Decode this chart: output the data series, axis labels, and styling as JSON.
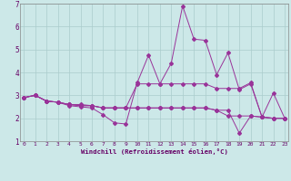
{
  "xlabel": "Windchill (Refroidissement éolien,°C)",
  "line_color": "#993399",
  "bg_color": "#cce8e8",
  "grid_color": "#aacccc",
  "x_min": 0,
  "x_max": 23,
  "y_min": 1,
  "y_max": 7,
  "lines": [
    [
      0,
      2.9,
      1,
      3.0,
      2,
      2.75,
      3,
      2.7,
      4,
      2.55,
      5,
      2.5,
      6,
      2.45,
      7,
      2.15,
      8,
      1.8,
      9,
      1.75,
      10,
      3.55,
      11,
      4.75,
      12,
      3.5,
      13,
      4.4,
      14,
      6.9,
      15,
      5.45,
      16,
      5.4,
      17,
      3.9,
      18,
      4.85,
      19,
      3.25,
      20,
      3.5,
      21,
      2.05,
      22,
      3.1,
      23,
      2.0
    ],
    [
      0,
      2.9,
      1,
      3.0,
      2,
      2.75,
      3,
      2.7,
      4,
      2.6,
      5,
      2.6,
      6,
      2.55,
      7,
      2.45,
      8,
      2.45,
      9,
      2.45,
      10,
      3.5,
      11,
      3.5,
      12,
      3.5,
      13,
      3.5,
      14,
      3.5,
      15,
      3.5,
      16,
      3.5,
      17,
      3.3,
      18,
      3.3,
      19,
      3.3,
      20,
      3.55,
      21,
      2.05,
      22,
      2.0,
      23,
      2.0
    ],
    [
      0,
      2.9,
      1,
      3.0,
      2,
      2.75,
      3,
      2.7,
      4,
      2.6,
      5,
      2.55,
      6,
      2.55,
      7,
      2.45,
      8,
      2.45,
      9,
      2.45,
      10,
      2.45,
      11,
      2.45,
      12,
      2.45,
      13,
      2.45,
      14,
      2.45,
      15,
      2.45,
      16,
      2.45,
      17,
      2.35,
      18,
      2.35,
      19,
      1.35,
      20,
      2.1,
      21,
      2.05,
      22,
      2.0,
      23,
      2.0
    ],
    [
      0,
      2.9,
      1,
      3.0,
      2,
      2.75,
      3,
      2.7,
      4,
      2.6,
      5,
      2.55,
      6,
      2.55,
      7,
      2.45,
      8,
      2.45,
      9,
      2.45,
      10,
      2.45,
      11,
      2.45,
      12,
      2.45,
      13,
      2.45,
      14,
      2.45,
      15,
      2.45,
      16,
      2.45,
      17,
      2.35,
      18,
      2.1,
      19,
      2.1,
      20,
      2.1,
      21,
      2.05,
      22,
      2.0,
      23,
      2.0
    ]
  ]
}
